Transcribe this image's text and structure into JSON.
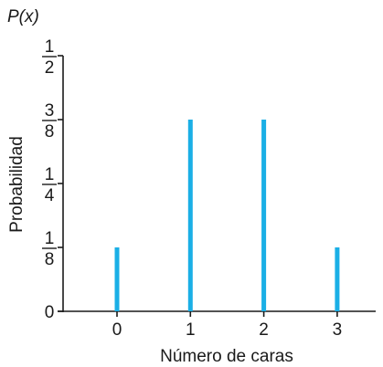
{
  "chart_data": {
    "type": "bar",
    "ylabel_top": "P(x)",
    "ylabel": "Probabilidad",
    "xlabel": "Número de caras",
    "categories": [
      "0",
      "1",
      "2",
      "3"
    ],
    "values": [
      0.125,
      0.375,
      0.375,
      0.125
    ],
    "ylim": [
      0,
      0.5
    ],
    "y_ticks": [
      {
        "value": 0,
        "num": "0",
        "den": ""
      },
      {
        "value": 0.125,
        "num": "1",
        "den": "8"
      },
      {
        "value": 0.25,
        "num": "1",
        "den": "4"
      },
      {
        "value": 0.375,
        "num": "3",
        "den": "8"
      },
      {
        "value": 0.5,
        "num": "1",
        "den": "2"
      }
    ],
    "bar_color": "#1aafe6",
    "axis_color": "#1a1a1a",
    "grid": false,
    "legend": "none"
  }
}
